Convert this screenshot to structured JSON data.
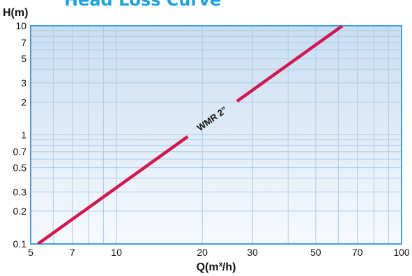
{
  "title": "Head Loss Curve",
  "colors": {
    "background_top": "#c9ddf2",
    "background_bottom": "#f7fafd",
    "border": "#3aa0de",
    "grid": "#a8cbe8",
    "curve": "#d4174f",
    "title": "#1ba3e3"
  },
  "chart_data": {
    "type": "line",
    "title": "Head Loss Curve",
    "xlabel": "Q(m³/h)",
    "ylabel": "H(m)",
    "x_scale": "log",
    "y_scale": "log",
    "xlim": [
      5,
      100
    ],
    "ylim": [
      0.1,
      10
    ],
    "x_ticks": [
      "5",
      "7",
      "10",
      "20",
      "30",
      "50",
      "70",
      "100"
    ],
    "y_ticks": [
      "0.1",
      "0.2",
      "0.3",
      "0.5",
      "0.7",
      "1",
      "2",
      "3",
      "5",
      "7",
      "10"
    ],
    "grid": true,
    "series": [
      {
        "name": "WMR 2”",
        "x": [
          5.3,
          62
        ],
        "y": [
          0.1,
          10
        ]
      }
    ]
  }
}
